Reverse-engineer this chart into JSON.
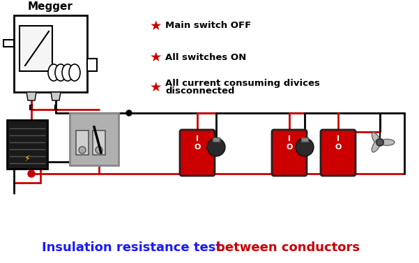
{
  "title_blue": "Insulation resistance test ",
  "title_red": "between conductors",
  "megger_label": "Megger",
  "legend_items": [
    "Main switch OFF",
    "All switches ON",
    "All current consuming divices\ndisconnected"
  ],
  "bg_color": "#ffffff",
  "black_wire": "#000000",
  "red_wire": "#cc0000",
  "star_color": "#cc0000",
  "title_blue_color": "#1a1aff",
  "title_red_color": "#cc0000",
  "figsize": [
    6.01,
    3.77
  ],
  "dpi": 100,
  "xlim": [
    0,
    601
  ],
  "ylim": [
    0,
    377
  ]
}
